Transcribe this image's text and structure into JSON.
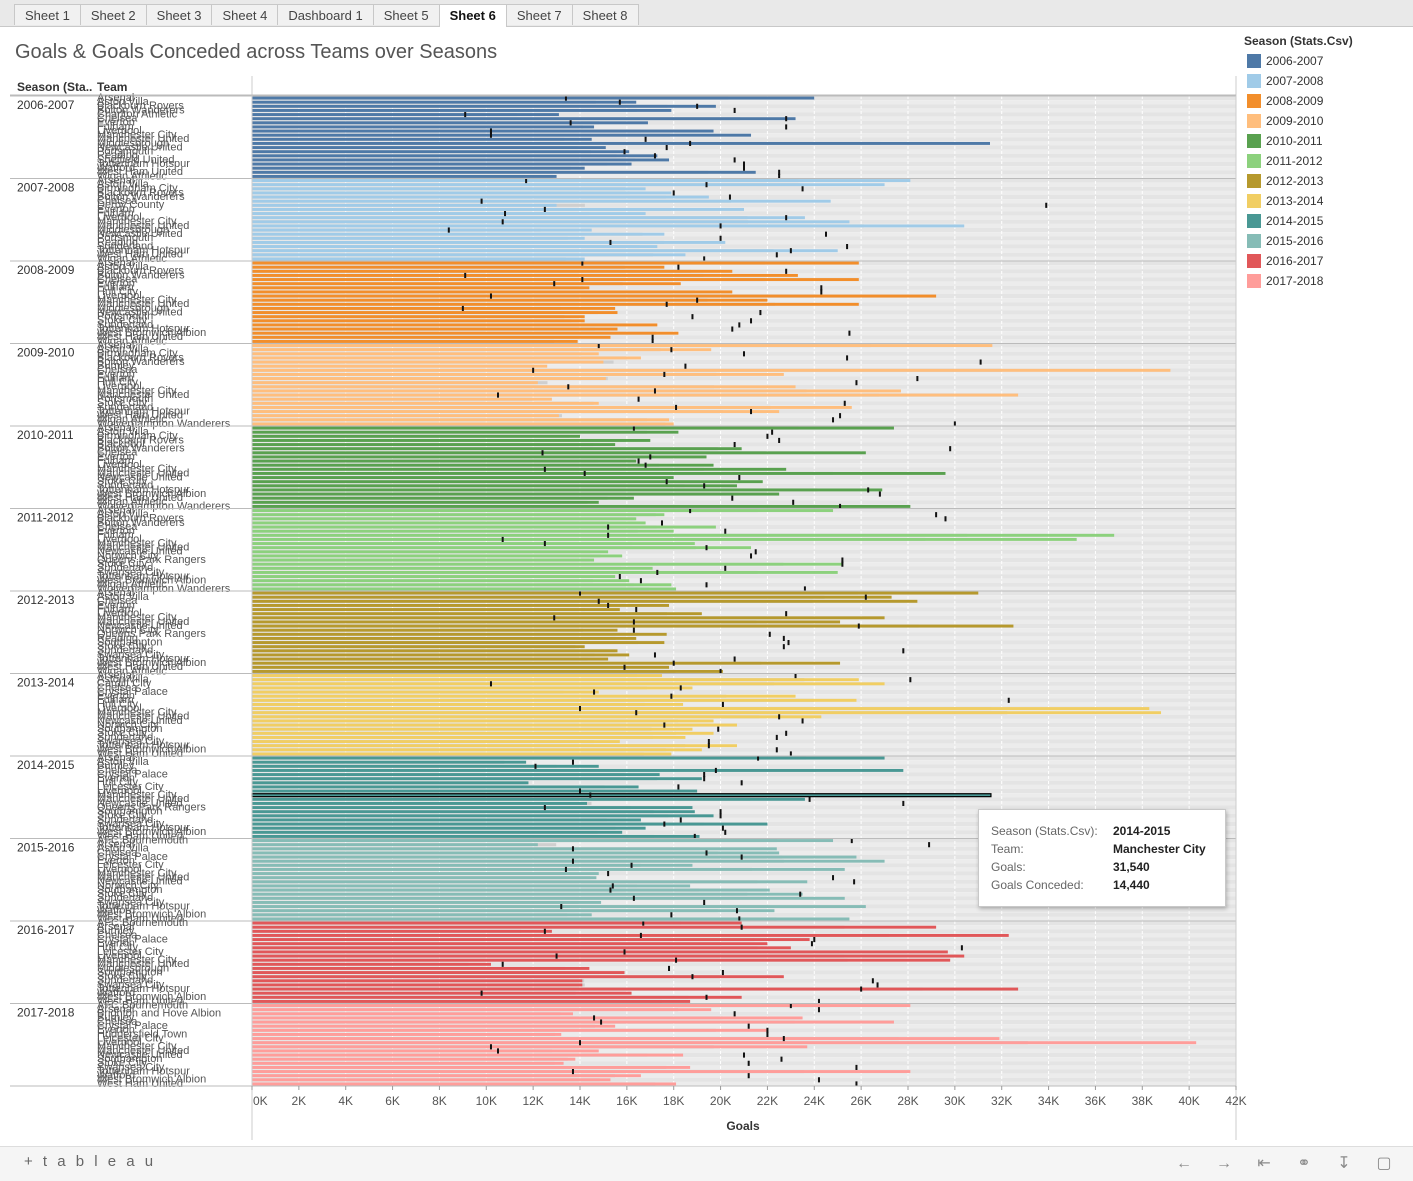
{
  "tabs": [
    {
      "label": "Sheet 1",
      "active": false
    },
    {
      "label": "Sheet 2",
      "active": false
    },
    {
      "label": "Sheet 3",
      "active": false
    },
    {
      "label": "Sheet 4",
      "active": false
    },
    {
      "label": "Dashboard 1",
      "active": false
    },
    {
      "label": "Sheet 5",
      "active": false
    },
    {
      "label": "Sheet 6",
      "active": true
    },
    {
      "label": "Sheet 7",
      "active": false
    },
    {
      "label": "Sheet 8",
      "active": false
    }
  ],
  "viz": {
    "title": "Goals & Goals Conceded across Teams over Seasons",
    "row_header_season": "Season (Sta..",
    "row_header_team": "Team",
    "x_axis_label": "Goals"
  },
  "legend": {
    "title": "Season (Stats.Csv)",
    "items": [
      {
        "label": "2006-2007",
        "color": "#4e79a7"
      },
      {
        "label": "2007-2008",
        "color": "#a0cbe8"
      },
      {
        "label": "2008-2009",
        "color": "#f28e2b"
      },
      {
        "label": "2009-2010",
        "color": "#ffbe7d"
      },
      {
        "label": "2010-2011",
        "color": "#59a14f"
      },
      {
        "label": "2011-2012",
        "color": "#8cd17d"
      },
      {
        "label": "2012-2013",
        "color": "#b6992d"
      },
      {
        "label": "2013-2014",
        "color": "#f1ce63"
      },
      {
        "label": "2014-2015",
        "color": "#499894"
      },
      {
        "label": "2015-2016",
        "color": "#86bcb6"
      },
      {
        "label": "2016-2017",
        "color": "#e15759"
      },
      {
        "label": "2017-2018",
        "color": "#ff9d9a"
      }
    ]
  },
  "tooltip": {
    "rows": [
      {
        "key": "Season (Stats.Csv):",
        "value": "2014-2015"
      },
      {
        "key": "Team:",
        "value": "Manchester City"
      },
      {
        "key": "Goals:",
        "value": "31,540"
      },
      {
        "key": "Goals Conceded:",
        "value": "14,440"
      }
    ]
  },
  "footer": {
    "logo": "+ t a b l e a u"
  },
  "chart_data": {
    "type": "bar",
    "xlabel": "Goals",
    "xlim": [
      0,
      42000
    ],
    "x_ticks": [
      "0K",
      "2K",
      "4K",
      "6K",
      "8K",
      "10K",
      "12K",
      "14K",
      "16K",
      "18K",
      "20K",
      "22K",
      "24K",
      "26K",
      "28K",
      "30K",
      "32K",
      "34K",
      "36K",
      "38K",
      "40K",
      "42K"
    ],
    "grid": true,
    "seasons": [
      {
        "season": "2006-2007",
        "teams": [
          "Arsenal",
          "Aston Villa",
          "Blackburn Rovers",
          "Bolton Wanderers",
          "Charlton Athletic",
          "Chelsea",
          "Everton",
          "Fulham",
          "Liverpool",
          "Manchester City",
          "Manchester United",
          "Middlesbrough",
          "Newcastle United",
          "Portsmouth",
          "Reading",
          "Sheffield United",
          "Tottenham Hotspur",
          "Watford",
          "West Ham United",
          "Wigan Athletic"
        ],
        "goals": [
          24000,
          16400,
          19800,
          17900,
          13100,
          23200,
          16900,
          14600,
          19700,
          21300,
          14500,
          31500,
          15100,
          16100,
          17300,
          17800,
          16200,
          14200,
          21500,
          13000
        ],
        "conceded": [
          13400,
          15700,
          19000,
          20600,
          9100,
          22800,
          13600,
          22800,
          10200,
          10200,
          16800,
          18700,
          17700,
          15900,
          17200,
          20600,
          21000,
          21000,
          22500,
          22500
        ]
      },
      {
        "season": "2007-2008",
        "teams": [
          "Arsenal",
          "Aston Villa",
          "Birmingham City",
          "Blackburn Rovers",
          "Bolton Wanderers",
          "Chelsea",
          "Derby County",
          "Everton",
          "Fulham",
          "Liverpool",
          "Manchester City",
          "Manchester United",
          "Middlesbrough",
          "Newcastle United",
          "Portsmouth",
          "Reading",
          "Sunderland",
          "Tottenham Hotspur",
          "West Ham United",
          "Wigan Athletic"
        ],
        "goals": [
          28100,
          27000,
          16800,
          17900,
          19500,
          24700,
          13000,
          21000,
          16800,
          23600,
          25500,
          30400,
          14500,
          17600,
          14200,
          20200,
          17300,
          25000,
          18500,
          14200
        ],
        "conceded": [
          11700,
          19400,
          23500,
          18000,
          20400,
          9800,
          33900,
          12500,
          10800,
          22800,
          10700,
          20000,
          8400,
          24500,
          20000,
          15300,
          25400,
          23000,
          22400,
          19300
        ]
      },
      {
        "season": "2008-2009",
        "teams": [
          "Arsenal",
          "Aston Villa",
          "Blackburn Rovers",
          "Bolton Wanderers",
          "Chelsea",
          "Everton",
          "Fulham",
          "Hull City",
          "Liverpool",
          "Manchester City",
          "Manchester United",
          "Middlesbrough",
          "Newcastle United",
          "Portsmouth",
          "Stoke City",
          "Sunderland",
          "Tottenham Hotspur",
          "West Bromwich Albion",
          "West Ham United",
          "Wigan Athletic"
        ],
        "goals": [
          25900,
          17600,
          20500,
          23300,
          25900,
          18300,
          14400,
          20500,
          29200,
          22000,
          25900,
          15500,
          15600,
          14200,
          14200,
          17300,
          15600,
          18200,
          15300,
          13900
        ],
        "conceded": [
          14100,
          18200,
          22800,
          9100,
          14100,
          12900,
          24300,
          24300,
          10200,
          19000,
          17700,
          9000,
          21700,
          18800,
          21300,
          20800,
          20500,
          25500,
          17100,
          17100
        ]
      },
      {
        "season": "2009-2010",
        "teams": [
          "Arsenal",
          "Aston Villa",
          "Birmingham City",
          "Blackburn Rovers",
          "Bolton Wanderers",
          "Burnley",
          "Chelsea",
          "Everton",
          "Fulham",
          "Hull City",
          "Liverpool",
          "Manchester City",
          "Manchester United",
          "Portsmouth",
          "Stoke City",
          "Sunderland",
          "Tottenham Hotspur",
          "West Ham United",
          "Wigan Athletic",
          "Wolverhampton Wanderers"
        ],
        "goals": [
          31600,
          19600,
          14800,
          16600,
          15000,
          12600,
          39200,
          22700,
          15100,
          12200,
          23200,
          27700,
          32700,
          12800,
          14800,
          25600,
          22500,
          13100,
          17800,
          18000
        ],
        "conceded": [
          14800,
          17900,
          21000,
          25400,
          31100,
          18500,
          12000,
          17600,
          28400,
          25800,
          13500,
          17200,
          10500,
          16500,
          25300,
          18100,
          21300,
          25100,
          24800,
          30000
        ]
      },
      {
        "season": "2010-2011",
        "teams": [
          "Arsenal",
          "Aston Villa",
          "Birmingham City",
          "Blackburn Rovers",
          "Blackpool",
          "Bolton Wanderers",
          "Chelsea",
          "Everton",
          "Fulham",
          "Liverpool",
          "Manchester City",
          "Manchester United",
          "Newcastle United",
          "Stoke City",
          "Sunderland",
          "Tottenham Hotspur",
          "West Bromwich Albion",
          "West Ham United",
          "Wigan Athletic",
          "Wolverhampton Wanderers"
        ],
        "goals": [
          27400,
          18200,
          14000,
          17000,
          15500,
          20900,
          26200,
          19400,
          16400,
          19700,
          22800,
          29600,
          18000,
          21800,
          20700,
          26900,
          22500,
          16300,
          14800,
          28100
        ],
        "conceded": [
          16300,
          22200,
          22000,
          22500,
          20600,
          29800,
          12400,
          17000,
          16500,
          16800,
          12500,
          14200,
          20800,
          17700,
          19300,
          26300,
          26800,
          20500,
          23100,
          25100
        ]
      },
      {
        "season": "2011-2012",
        "teams": [
          "Arsenal",
          "Aston Villa",
          "Blackburn Rovers",
          "Bolton Wanderers",
          "Chelsea",
          "Everton",
          "Fulham",
          "Liverpool",
          "Manchester City",
          "Manchester United",
          "Newcastle United",
          "Norwich City",
          "Queens Park Rangers",
          "Stoke City",
          "Sunderland",
          "Swansea City",
          "Tottenham Hotspur",
          "West Bromwich Albion",
          "Wigan Athletic",
          "Wolverhampton Wanderers"
        ],
        "goals": [
          24800,
          17600,
          16400,
          16800,
          19800,
          18000,
          36800,
          35200,
          18900,
          21300,
          15200,
          15800,
          14600,
          25200,
          17100,
          25000,
          15500,
          16100,
          17900,
          18100
        ],
        "conceded": [
          18700,
          29200,
          29600,
          17500,
          15200,
          20200,
          15200,
          10700,
          12500,
          19400,
          21500,
          21300,
          25200,
          25200,
          20200,
          17300,
          15700,
          16600,
          19400,
          23600
        ]
      },
      {
        "season": "2012-2013",
        "teams": [
          "Arsenal",
          "Aston Villa",
          "Chelsea",
          "Everton",
          "Fulham",
          "Liverpool",
          "Manchester City",
          "Manchester United",
          "Newcastle United",
          "Norwich City",
          "Queens Park Rangers",
          "Reading",
          "Southampton",
          "Stoke City",
          "Sunderland",
          "Swansea City",
          "Tottenham Hotspur",
          "West Bromwich Albion",
          "West Ham United",
          "Wigan Athletic"
        ],
        "goals": [
          31000,
          27300,
          28400,
          17800,
          15700,
          19200,
          27000,
          25100,
          32500,
          15600,
          17700,
          16400,
          17600,
          14200,
          15600,
          16100,
          15200,
          25100,
          17800,
          20100
        ],
        "conceded": [
          14000,
          26200,
          14800,
          15200,
          16400,
          22800,
          12900,
          16300,
          25900,
          16300,
          22100,
          22700,
          22900,
          22700,
          27800,
          17200,
          20600,
          18000,
          15900,
          20000
        ]
      },
      {
        "season": "2013-2014",
        "teams": [
          "Arsenal",
          "Aston Villa",
          "Cardiff City",
          "Chelsea",
          "Crystal Palace",
          "Everton",
          "Fulham",
          "Hull City",
          "Liverpool",
          "Manchester City",
          "Manchester United",
          "Newcastle United",
          "Norwich City",
          "Southampton",
          "Stoke City",
          "Sunderland",
          "Swansea City",
          "Tottenham Hotspur",
          "West Bromwich Albion",
          "West Ham United"
        ],
        "goals": [
          17500,
          25900,
          27000,
          18800,
          14800,
          23200,
          25800,
          18400,
          38300,
          38800,
          24300,
          19700,
          20700,
          18800,
          19700,
          18500,
          15700,
          20700,
          19200,
          17900
        ],
        "conceded": [
          23200,
          28100,
          10200,
          18300,
          14600,
          17900,
          32300,
          20100,
          14000,
          16400,
          22500,
          23500,
          17600,
          19900,
          22800,
          22400,
          19500,
          19500,
          22400,
          23000
        ]
      },
      {
        "season": "2014-2015",
        "teams": [
          "Arsenal",
          "Aston Villa",
          "Burnley",
          "Chelsea",
          "Crystal Palace",
          "Everton",
          "Hull City",
          "Leicester City",
          "Liverpool",
          "Manchester City",
          "Manchester United",
          "Newcastle United",
          "Queens Park Rangers",
          "Southampton",
          "Stoke City",
          "Sunderland",
          "Swansea City",
          "Tottenham Hotspur",
          "West Bromwich Albion",
          "West Ham United"
        ],
        "goals": [
          27000,
          11700,
          14800,
          27800,
          17400,
          19200,
          11800,
          16500,
          19000,
          31540,
          23600,
          14300,
          18800,
          18900,
          19700,
          16600,
          22000,
          16800,
          15800,
          19100
        ],
        "conceded": [
          21600,
          13700,
          12100,
          19800,
          19300,
          19300,
          20900,
          18200,
          14000,
          14440,
          23800,
          27800,
          12500,
          20000,
          20000,
          18300,
          17600,
          20100,
          20200,
          18900
        ]
      },
      {
        "season": "2015-2016",
        "teams": [
          "AFC Bournemouth",
          "Arsenal",
          "Aston Villa",
          "Chelsea",
          "Crystal Palace",
          "Everton",
          "Leicester City",
          "Liverpool",
          "Manchester City",
          "Manchester United",
          "Newcastle United",
          "Norwich City",
          "Southampton",
          "Stoke City",
          "Sunderland",
          "Swansea City",
          "Tottenham Hotspur",
          "Watford",
          "West Bromwich Albion",
          "West Ham United"
        ],
        "goals": [
          24800,
          12200,
          22400,
          22500,
          25800,
          27000,
          18800,
          25300,
          14800,
          14700,
          23700,
          18700,
          22100,
          23500,
          25300,
          14900,
          26200,
          22300,
          14500,
          25500
        ],
        "conceded": [
          25600,
          28900,
          13700,
          19400,
          20900,
          13700,
          16200,
          13400,
          15200,
          24800,
          25700,
          15400,
          15300,
          23400,
          16300,
          19300,
          13200,
          20700,
          17900,
          20800
        ]
      },
      {
        "season": "2016-2017",
        "teams": [
          "AFC Bournemouth",
          "Arsenal",
          "Burnley",
          "Chelsea",
          "Crystal Palace",
          "Everton",
          "Hull City",
          "Leicester City",
          "Liverpool",
          "Manchester City",
          "Manchester United",
          "Middlesbrough",
          "Southampton",
          "Stoke City",
          "Sunderland",
          "Swansea City",
          "Tottenham Hotspur",
          "Watford",
          "West Bromwich Albion",
          "West Ham United"
        ],
        "goals": [
          20900,
          29200,
          12800,
          32300,
          23800,
          22000,
          23000,
          29700,
          30400,
          29800,
          10200,
          14400,
          15900,
          22700,
          14100,
          14100,
          32700,
          16200,
          20900,
          18700
        ],
        "conceded": [
          16700,
          20900,
          12500,
          16600,
          24000,
          23900,
          30300,
          15900,
          13000,
          18100,
          10700,
          17800,
          20100,
          18800,
          26500,
          26700,
          26000,
          9800,
          19400,
          24200
        ]
      },
      {
        "season": "2017-2018",
        "teams": [
          "AFC Bournemouth",
          "Arsenal",
          "Brighton and Hove Albion",
          "Burnley",
          "Chelsea",
          "Crystal Palace",
          "Everton",
          "Huddersfield Town",
          "Leicester City",
          "Liverpool",
          "Manchester City",
          "Manchester United",
          "Newcastle United",
          "Southampton",
          "Stoke City",
          "Swansea City",
          "Tottenham Hotspur",
          "Watford",
          "West Bromwich Albion",
          "West Ham United"
        ],
        "goals": [
          28100,
          19600,
          13700,
          23500,
          27400,
          15500,
          22000,
          13200,
          31900,
          40300,
          23700,
          14800,
          18400,
          13800,
          13300,
          18700,
          28100,
          16600,
          15300,
          18100
        ],
        "conceded": [
          23000,
          24200,
          20600,
          14600,
          14900,
          21200,
          22000,
          22000,
          22700,
          14000,
          10200,
          10500,
          21000,
          22600,
          21200,
          25800,
          13700,
          21200,
          24200,
          25800
        ]
      }
    ]
  }
}
